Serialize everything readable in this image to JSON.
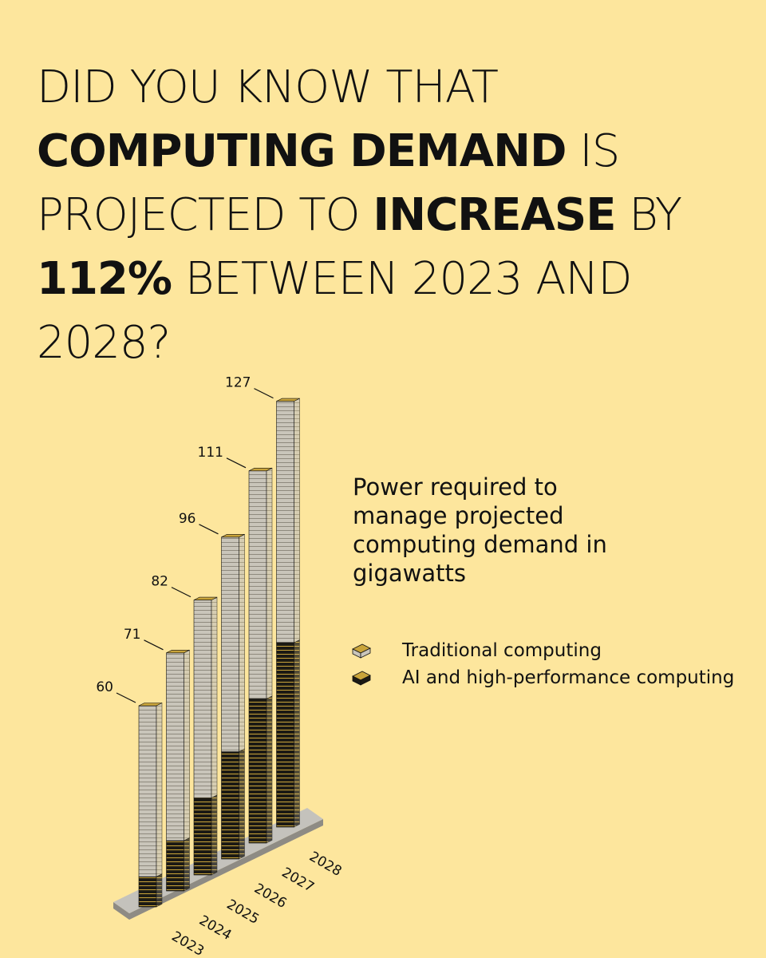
{
  "chart_data": {
    "type": "iso-stacked-bar",
    "title_parts": [
      {
        "text": "DID YOU KNOW THAT ",
        "bold": false
      },
      {
        "text": "COMPUTING DEMAND",
        "bold": true
      },
      {
        "text": " IS PROJECTED TO ",
        "bold": false
      },
      {
        "text": "INCREASE",
        "bold": true
      },
      {
        "text": " BY ",
        "bold": false
      },
      {
        "text": "112%",
        "bold": true
      },
      {
        "text": " BETWEEN 2023 AND 2028?",
        "bold": false
      }
    ],
    "subtitle": "Power required to manage projected computing demand in gigawatts",
    "categories": [
      "2023",
      "2024",
      "2025",
      "2026",
      "2027",
      "2028"
    ],
    "totals": [
      60,
      71,
      82,
      96,
      111,
      127
    ],
    "series": [
      {
        "name": "Traditional computing",
        "color": "#c9c5ba",
        "values": [
          51,
          56,
          59,
          64,
          68,
          72
        ]
      },
      {
        "name": "AI and high-performance computing",
        "color": "#1c1a14",
        "values": [
          9,
          15,
          23,
          32,
          43,
          55
        ]
      }
    ]
  }
}
